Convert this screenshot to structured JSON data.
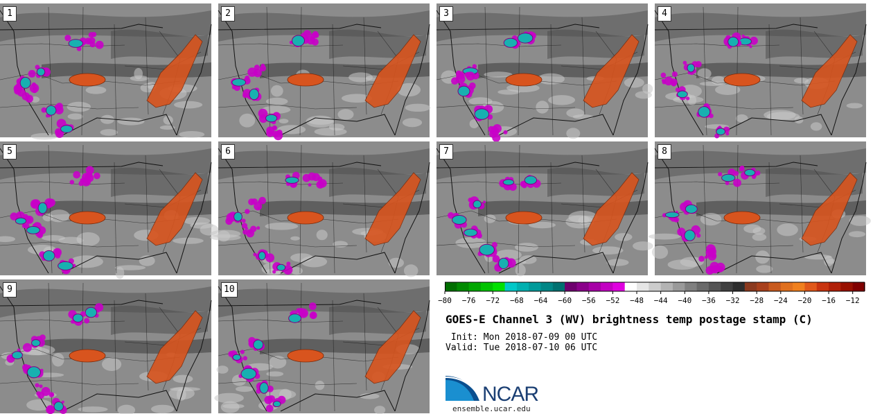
{
  "chart_data": {
    "type": "heatmap",
    "title": "GOES-E Channel 3 (WV) brightness temp postage stamp (C)",
    "init": " Init: Mon 2018-07-09 00 UTC",
    "valid": "Valid: Tue 2018-07-10 06 UTC",
    "units": "C",
    "panels": [
      "1",
      "2",
      "3",
      "4",
      "5",
      "6",
      "7",
      "8",
      "9",
      "10"
    ],
    "colorbar": {
      "min": -80,
      "max": -10,
      "step": 2,
      "tick_labels": [
        "−80",
        "−76",
        "−72",
        "−68",
        "−64",
        "−60",
        "−56",
        "−52",
        "−48",
        "−44",
        "−40",
        "−36",
        "−32",
        "−28",
        "−24",
        "−20",
        "−16",
        "−12"
      ],
      "tick_values": [
        -80,
        -76,
        -72,
        -68,
        -64,
        -60,
        -56,
        -52,
        -48,
        -44,
        -40,
        -36,
        -32,
        -28,
        -24,
        -20,
        -16,
        -12
      ],
      "colors": [
        "#006e00",
        "#008a00",
        "#00a600",
        "#00c200",
        "#00e000",
        "#00c8c8",
        "#00b0b0",
        "#009a9a",
        "#008686",
        "#007070",
        "#6e006e",
        "#8a008a",
        "#a600a6",
        "#c200c2",
        "#e000e0",
        "#ffffff",
        "#e6e6e6",
        "#cccccc",
        "#b3b3b3",
        "#9a9a9a",
        "#808080",
        "#6a6a6a",
        "#555555",
        "#404040",
        "#2e2e2e",
        "#8b3a1f",
        "#a8401c",
        "#c85a1e",
        "#e0701e",
        "#f0801e",
        "#e0581a",
        "#c83410",
        "#b02008",
        "#981000",
        "#800000"
      ]
    }
  },
  "branding": {
    "logo_text": "NCAR",
    "website": "ensemble.ucar.edu"
  }
}
